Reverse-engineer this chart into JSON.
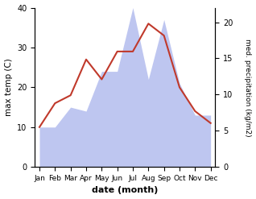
{
  "months": [
    "Jan",
    "Feb",
    "Mar",
    "Apr",
    "May",
    "Jun",
    "Jul",
    "Aug",
    "Sep",
    "Oct",
    "Nov",
    "Dec"
  ],
  "temperature": [
    10,
    16,
    18,
    27,
    22,
    29,
    29,
    36,
    33,
    20,
    14,
    11
  ],
  "precipitation": [
    10,
    10,
    15,
    14,
    24,
    24,
    40,
    22,
    37,
    21,
    13,
    13
  ],
  "temp_color": "#c0392b",
  "precip_fill_color": "#b3bcee",
  "temp_ylim": [
    0,
    40
  ],
  "precip_ylim": [
    0,
    40
  ],
  "right_ylim": [
    0,
    22
  ],
  "right_ticks": [
    0,
    5,
    10,
    15,
    20
  ],
  "left_ticks": [
    0,
    10,
    20,
    30,
    40
  ],
  "xlabel": "date (month)",
  "ylabel_left": "max temp (C)",
  "ylabel_right": "med. precipitation (kg/m2)"
}
